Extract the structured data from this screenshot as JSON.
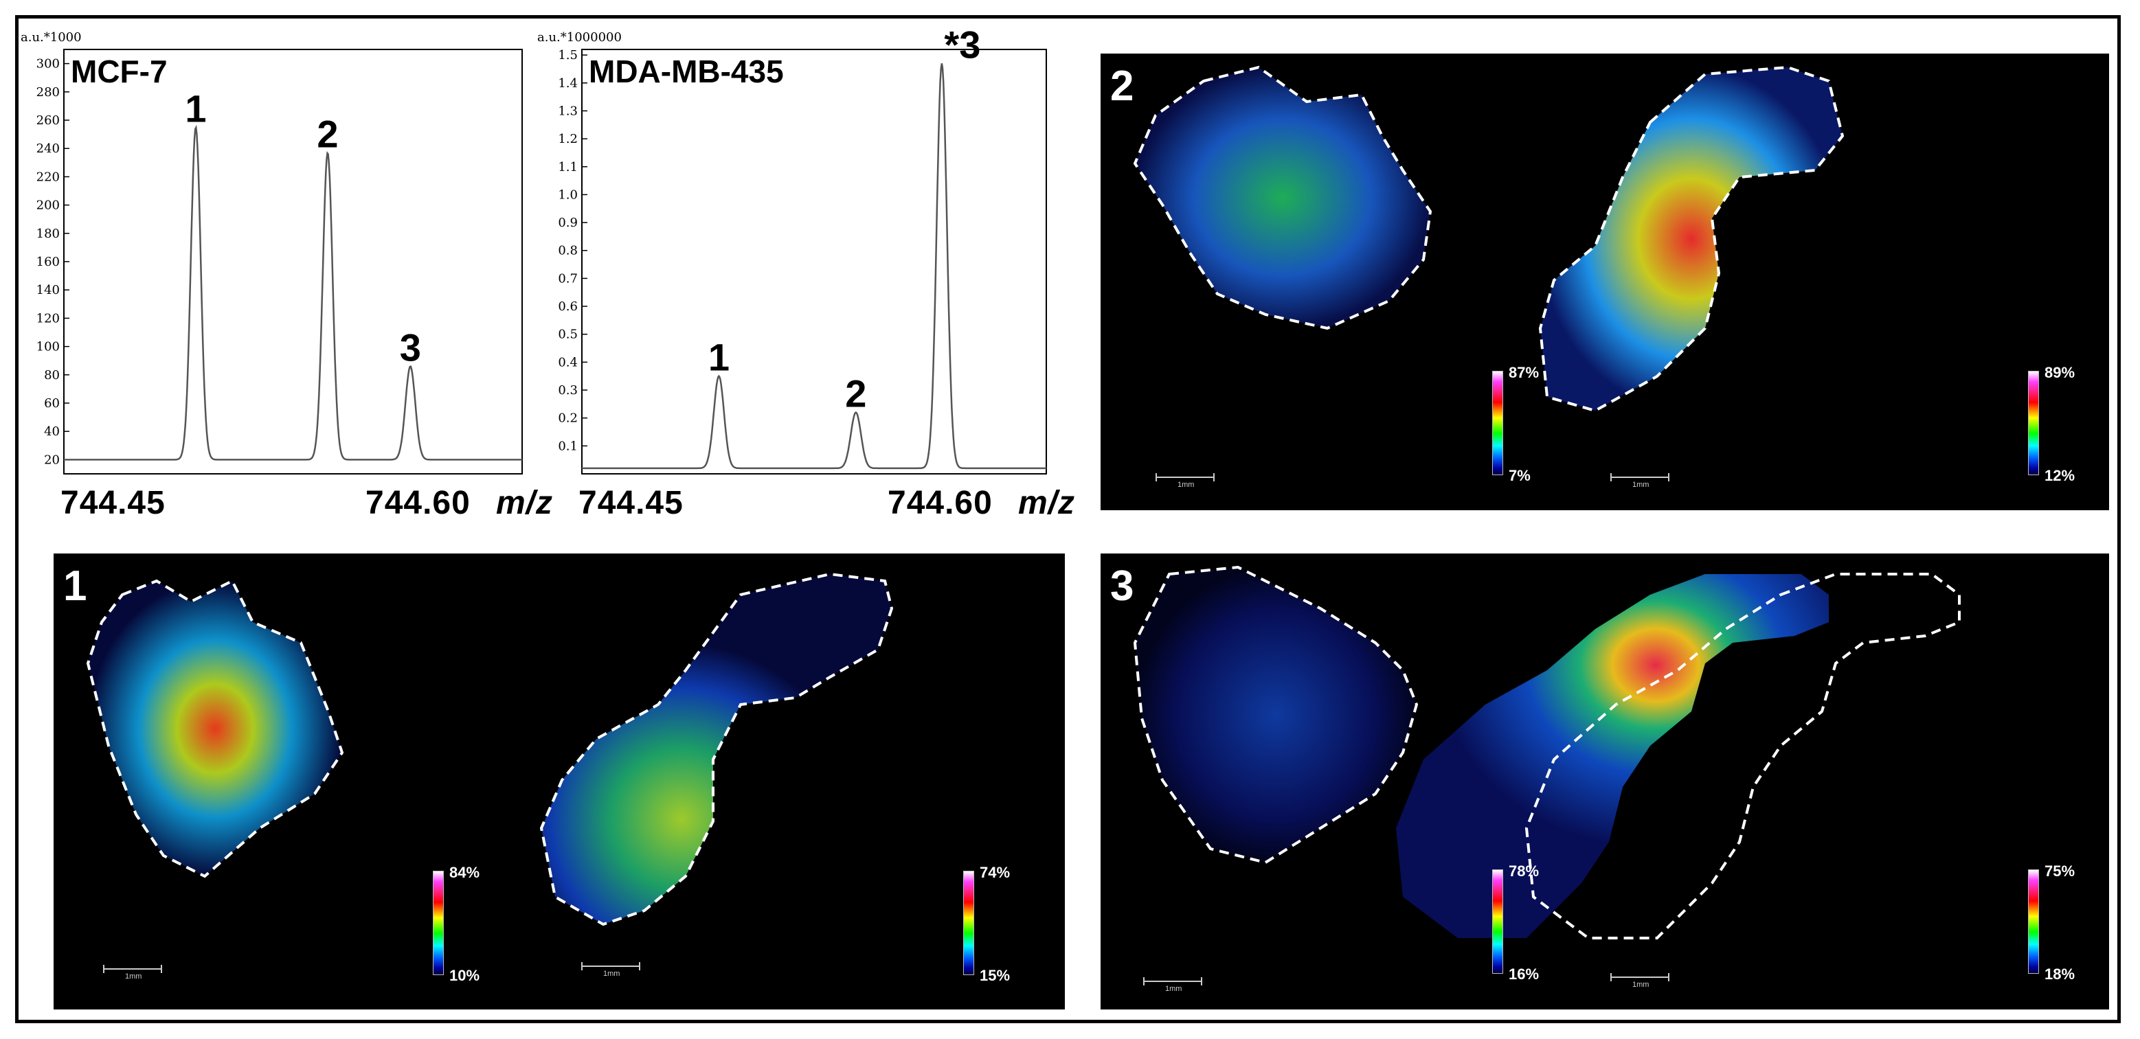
{
  "chart_data": [
    {
      "type": "line",
      "title": "MCF-7",
      "ylabel": "a.u.*1000",
      "xlabel": "m/z",
      "xlim": [
        744.43,
        744.635
      ],
      "ylim": [
        10,
        310
      ],
      "yticks": [
        20,
        40,
        60,
        80,
        100,
        120,
        140,
        160,
        180,
        200,
        220,
        240,
        260,
        280,
        300
      ],
      "xtick_labels": [
        "744.45",
        "744.60"
      ],
      "xtick_values": [
        744.45,
        744.6
      ],
      "peaks": [
        {
          "label": "1",
          "x": 744.489,
          "y": 255
        },
        {
          "label": "2",
          "x": 744.548,
          "y": 237
        },
        {
          "label": "3",
          "x": 744.585,
          "y": 86
        }
      ]
    },
    {
      "type": "line",
      "title": "MDA-MB-435",
      "ylabel": "a.u.*1000000",
      "xlabel": "m/z",
      "xlim": [
        744.43,
        744.63
      ],
      "ylim": [
        0,
        1.52
      ],
      "yticks": [
        0.1,
        0.2,
        0.3,
        0.4,
        0.5,
        0.6,
        0.7,
        0.8,
        0.9,
        1.0,
        1.1,
        1.2,
        1.3,
        1.4,
        1.5
      ],
      "xtick_labels": [
        "744.45",
        "744.60"
      ],
      "xtick_values": [
        744.45,
        744.6
      ],
      "peaks": [
        {
          "label": "1",
          "x": 744.489,
          "y": 0.35
        },
        {
          "label": "2",
          "x": 744.548,
          "y": 0.22
        },
        {
          "label": "*3",
          "x": 744.585,
          "y": 1.47
        }
      ]
    }
  ],
  "panels": [
    {
      "number": "1",
      "left": {
        "max": "84%",
        "min": "10%"
      },
      "right": {
        "max": "74%",
        "min": "15%"
      },
      "scale": "1mm"
    },
    {
      "number": "2",
      "left": {
        "max": "87%",
        "min": "7%"
      },
      "right": {
        "max": "89%",
        "min": "12%"
      },
      "scale": "1mm"
    },
    {
      "number": "3",
      "left": {
        "max": "78%",
        "min": "16%"
      },
      "right": {
        "max": "75%",
        "min": "18%"
      },
      "scale": "1mm"
    }
  ],
  "colors": {
    "spectrum_line": "#555555",
    "panel_bg": "#000000",
    "outline": "#ffffff"
  }
}
